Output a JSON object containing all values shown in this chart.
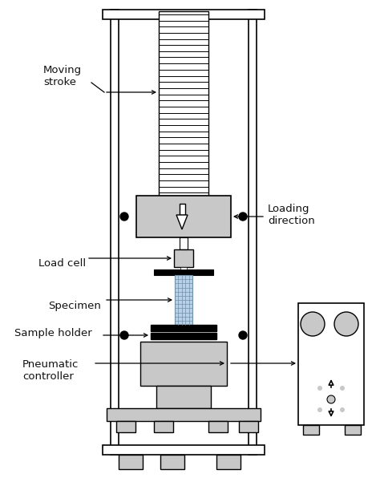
{
  "bg_color": "#ffffff",
  "frame_color": "#000000",
  "gray_light": "#c8c8c8",
  "labels": {
    "moving_stroke": "Moving\nstroke",
    "load_cell": "Load cell",
    "specimen": "Specimen",
    "sample_holder": "Sample holder",
    "pneumatic": "Pneumatic\ncontroller",
    "loading_direction": "Loading\ndirection"
  },
  "figsize": [
    4.74,
    6.06
  ],
  "dpi": 100
}
